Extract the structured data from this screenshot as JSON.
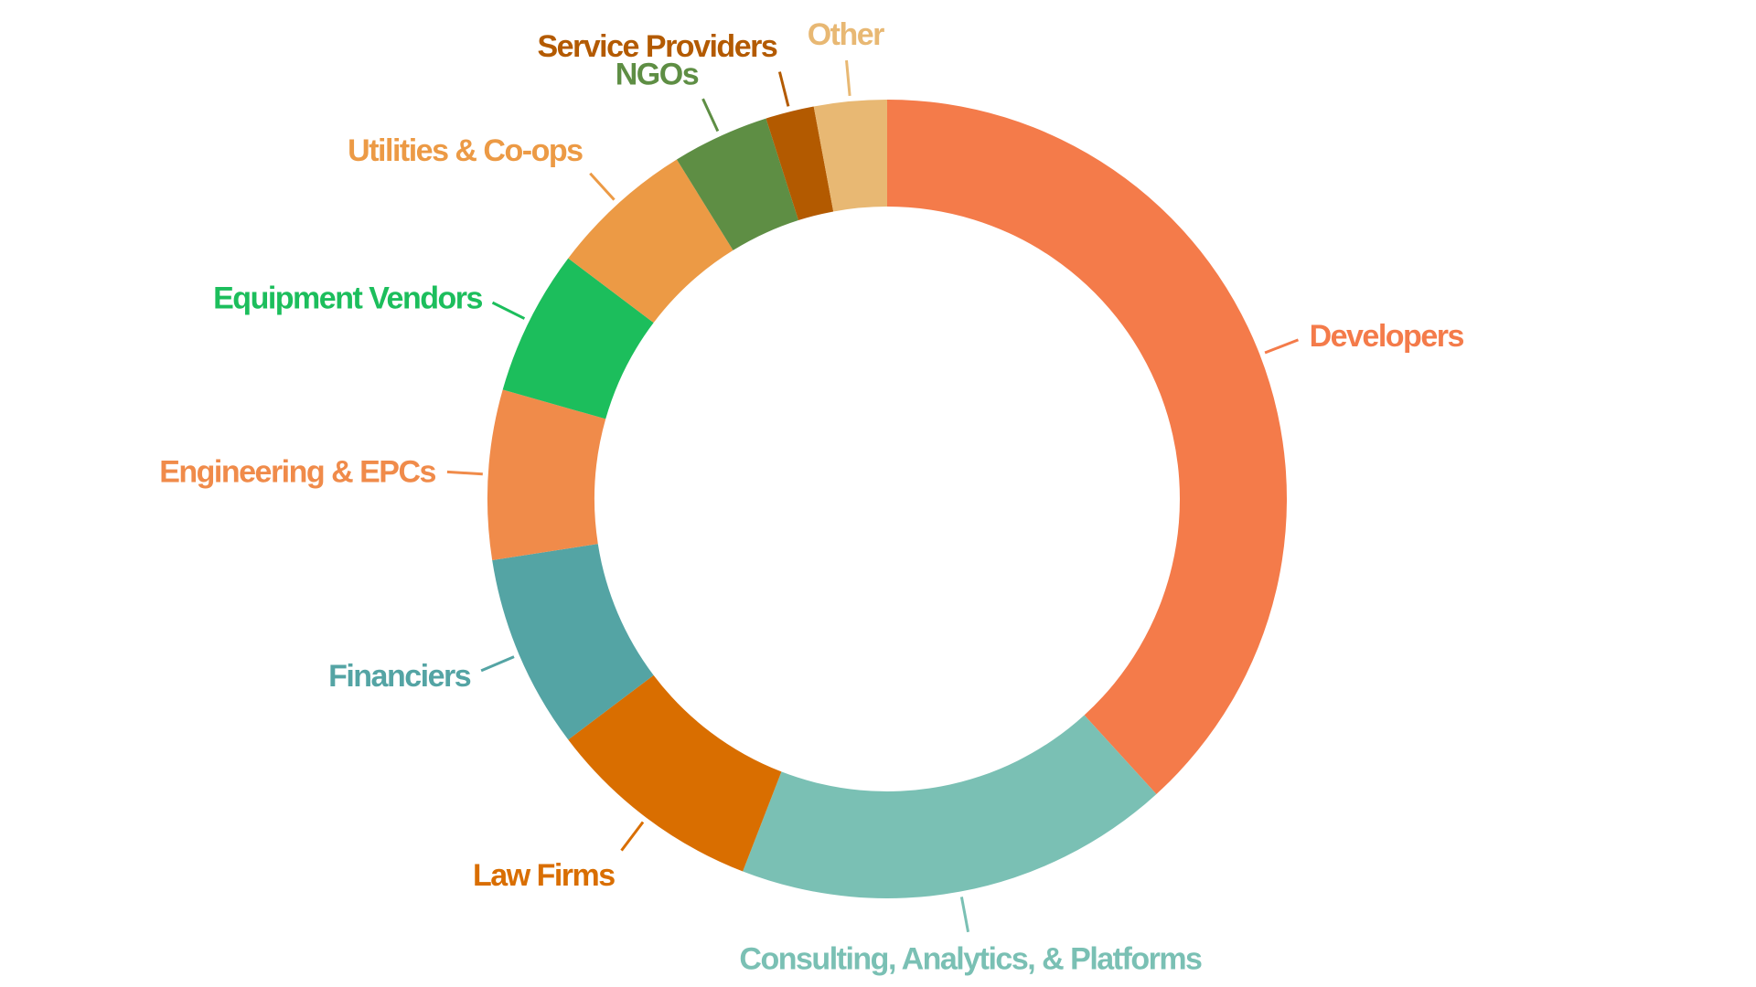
{
  "chart_data": {
    "type": "pie",
    "donut": true,
    "title": "",
    "legend": "none",
    "slices": [
      {
        "label": "Developers",
        "value": 39,
        "color": "#F47B4A"
      },
      {
        "label": "Consulting, Analytics, & Platforms",
        "value": 18,
        "color": "#7AC0B4"
      },
      {
        "label": "Law Firms",
        "value": 9,
        "color": "#D96E00"
      },
      {
        "label": "Financiers",
        "value": 8,
        "color": "#54A4A4"
      },
      {
        "label": "Engineering & EPCs",
        "value": 7,
        "color": "#F08B4A"
      },
      {
        "label": "Equipment Vendors",
        "value": 6,
        "color": "#1CBE5C"
      },
      {
        "label": "Utilities & Co-ops",
        "value": 6,
        "color": "#EC9A45"
      },
      {
        "label": "NGOs",
        "value": 4,
        "color": "#5E8E44"
      },
      {
        "label": "Service Providers",
        "value": 2,
        "color": "#B35A00"
      },
      {
        "label": "Other",
        "value": 3,
        "color": "#E8B873"
      }
    ]
  }
}
